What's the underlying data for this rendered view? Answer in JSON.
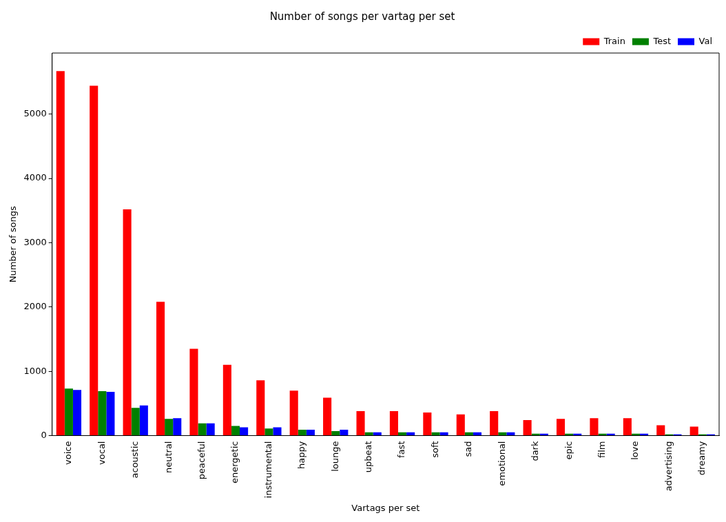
{
  "chart_data": {
    "type": "bar",
    "title": "Number of songs per vartag per set",
    "xlabel": "Vartags per set",
    "ylabel": "Number of songs",
    "categories": [
      "voice",
      "vocal",
      "acoustic",
      "neutral",
      "peaceful",
      "energetic",
      "instrumental",
      "happy",
      "lounge",
      "upbeat",
      "fast",
      "soft",
      "sad",
      "emotional",
      "dark",
      "epic",
      "film",
      "love",
      "advertising",
      "dreamy"
    ],
    "series": [
      {
        "name": "Train",
        "color": "#ff0000",
        "values": [
          5670,
          5440,
          3520,
          2080,
          1350,
          1100,
          860,
          700,
          590,
          380,
          380,
          360,
          330,
          380,
          240,
          260,
          270,
          270,
          160,
          140
        ]
      },
      {
        "name": "Test",
        "color": "#008000",
        "values": [
          730,
          690,
          430,
          260,
          190,
          150,
          110,
          90,
          70,
          50,
          50,
          50,
          50,
          50,
          30,
          30,
          30,
          30,
          20,
          20
        ]
      },
      {
        "name": "Val",
        "color": "#0000ff",
        "values": [
          710,
          680,
          470,
          270,
          190,
          130,
          130,
          90,
          90,
          50,
          50,
          50,
          50,
          50,
          30,
          30,
          30,
          30,
          20,
          20
        ]
      }
    ],
    "ylim": [
      0,
      5950
    ],
    "yticks": [
      0,
      1000,
      2000,
      3000,
      4000,
      5000
    ],
    "grid": false,
    "legend": "top right"
  }
}
